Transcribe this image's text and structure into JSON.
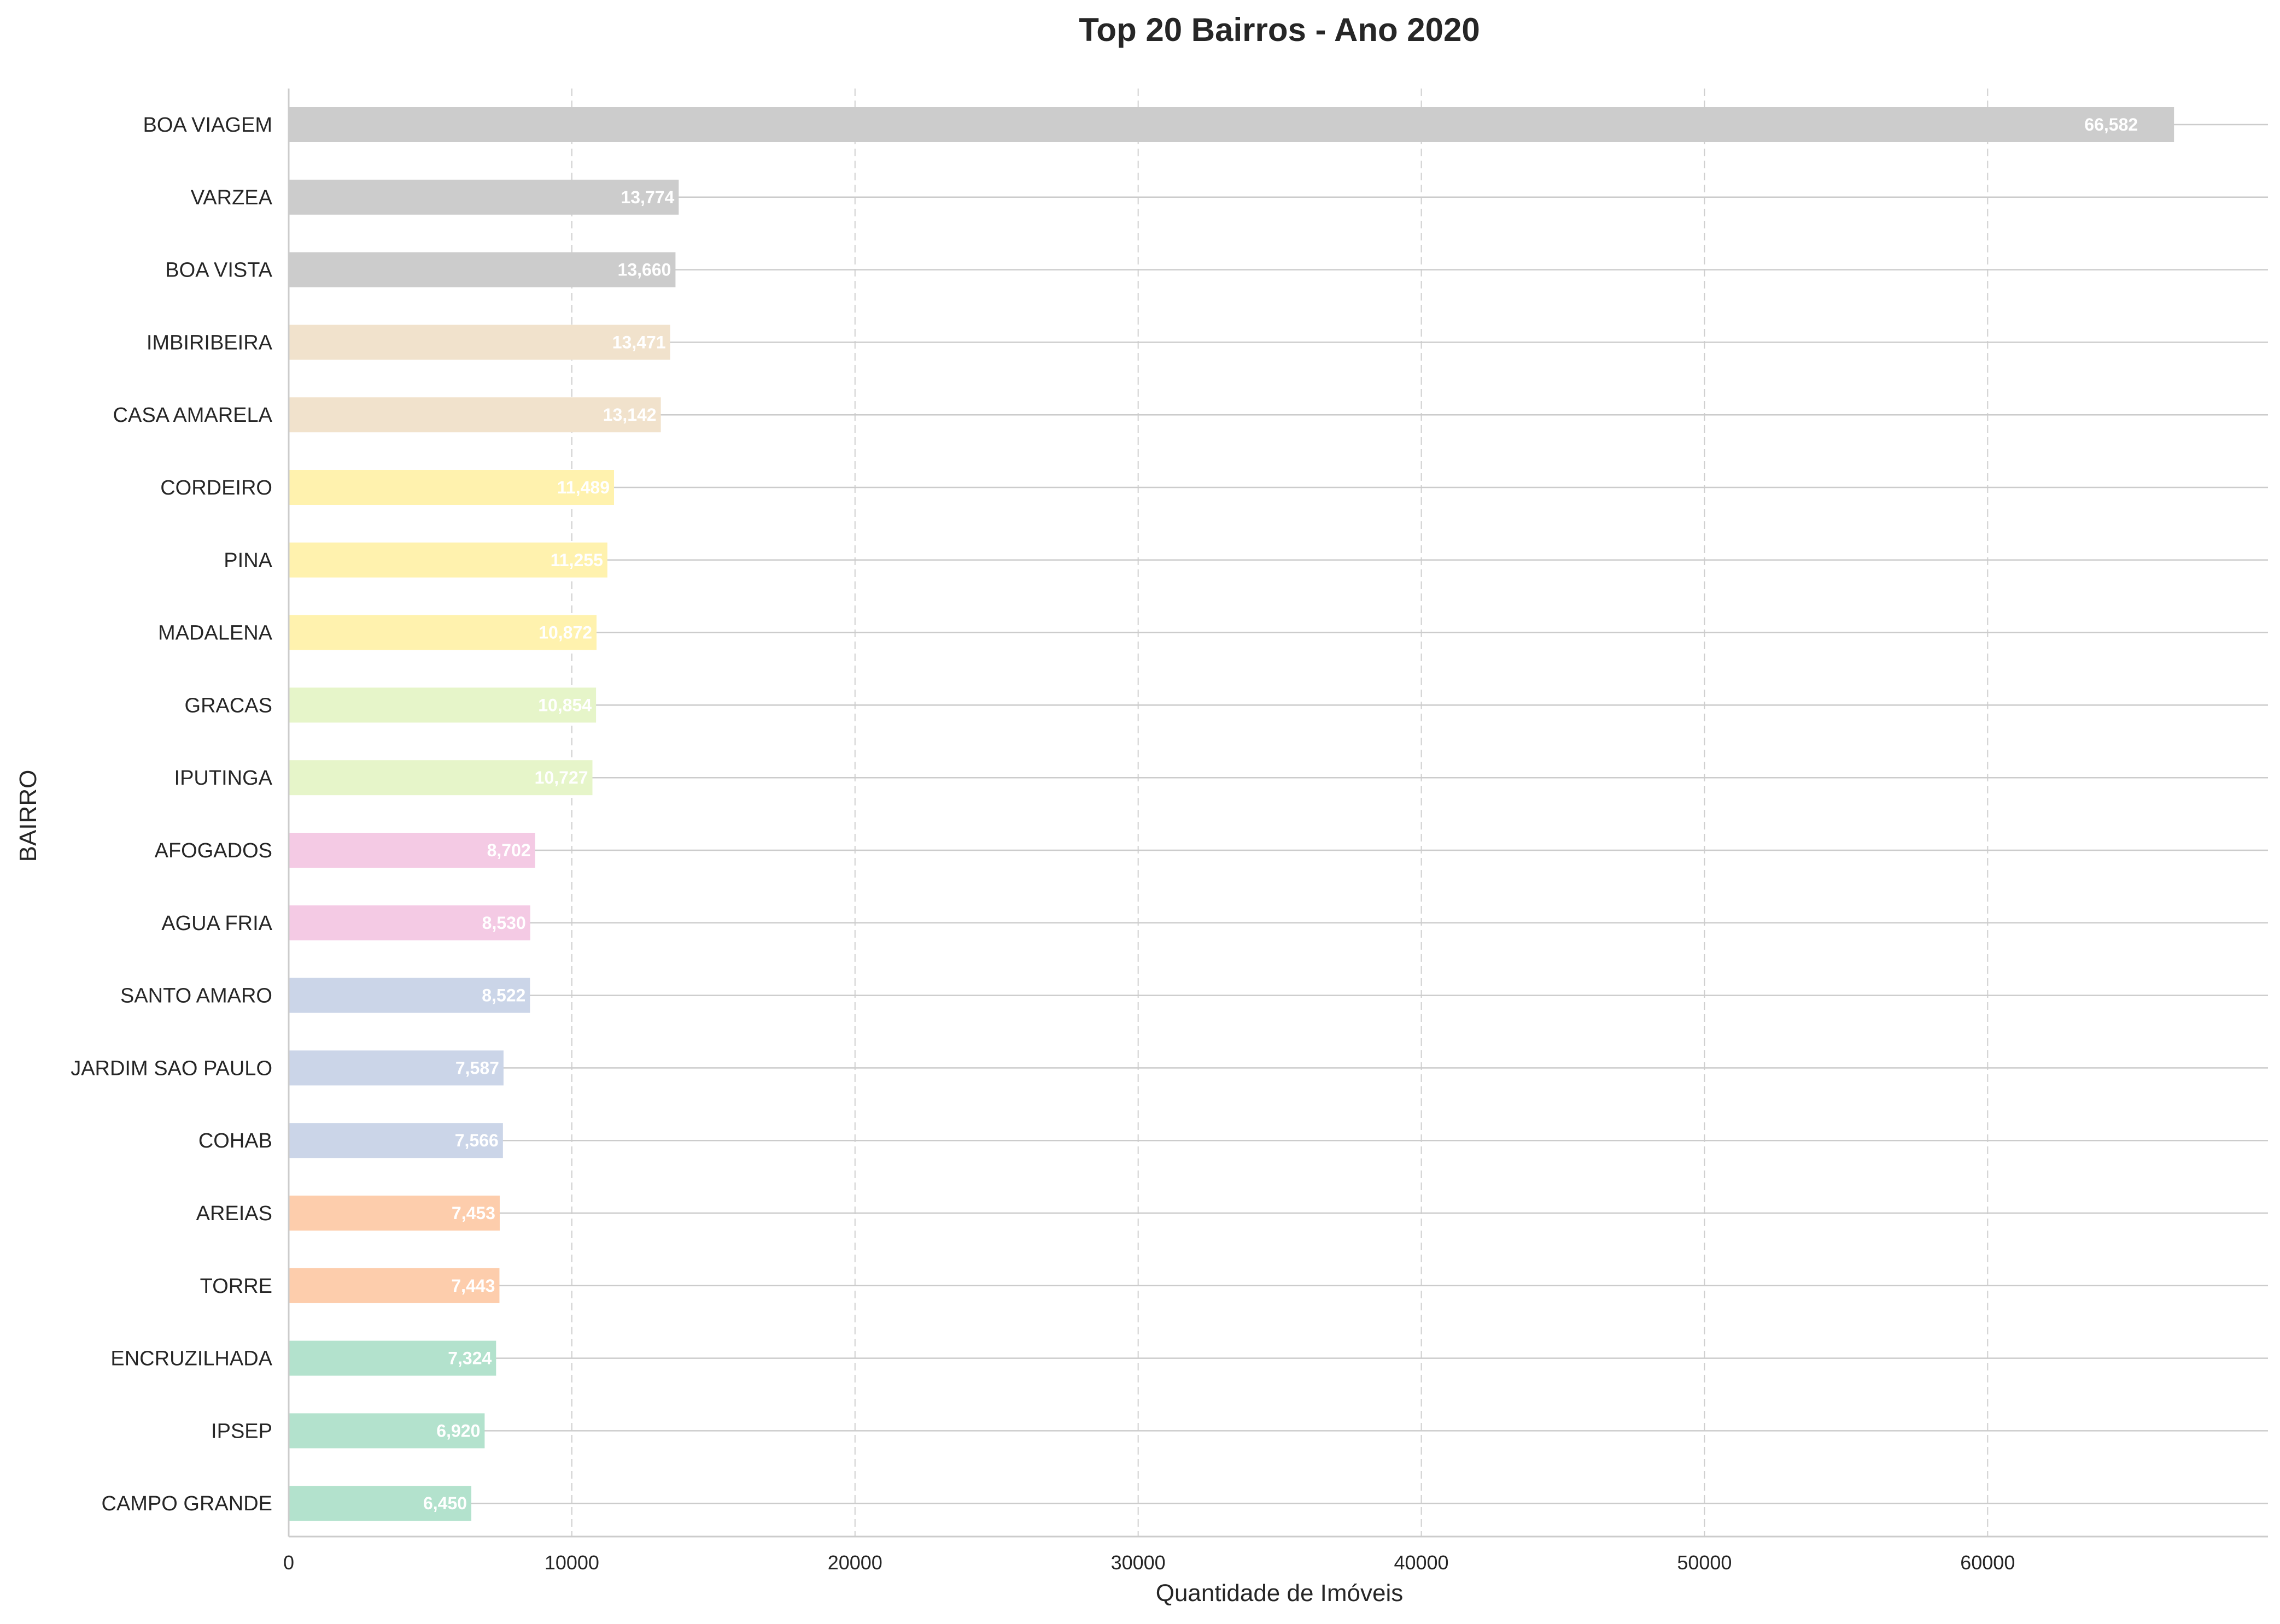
{
  "chart_data": {
    "type": "bar",
    "orientation": "horizontal",
    "title": "Top 20 Bairros - Ano 2020",
    "xlabel": "Quantidade de Imóveis",
    "ylabel": "BAIRRO",
    "xlim": [
      0,
      69900
    ],
    "xticks": [
      0,
      10000,
      20000,
      30000,
      40000,
      50000,
      60000
    ],
    "xtick_labels": [
      "0",
      "10000",
      "20000",
      "30000",
      "40000",
      "50000",
      "60000"
    ],
    "grid": "x dashed, y solid",
    "categories": [
      "BOA VIAGEM",
      "VARZEA",
      "BOA VISTA",
      "IMBIRIBEIRA",
      "CASA AMARELA",
      "CORDEIRO",
      "PINA",
      "MADALENA",
      "GRACAS",
      "IPUTINGA",
      "AFOGADOS",
      "AGUA FRIA",
      "SANTO AMARO",
      "JARDIM SAO PAULO",
      "COHAB",
      "AREIAS",
      "TORRE",
      "ENCRUZILHADA",
      "IPSEP",
      "CAMPO GRANDE"
    ],
    "values": [
      66582,
      13774,
      13660,
      13471,
      13142,
      11489,
      11255,
      10872,
      10854,
      10727,
      8702,
      8530,
      8522,
      7587,
      7566,
      7453,
      7443,
      7324,
      6920,
      6450
    ],
    "value_labels": [
      "66,582",
      "13,774",
      "13,660",
      "13,471",
      "13,142",
      "11,489",
      "11,255",
      "10,872",
      "10,854",
      "10,727",
      "8,702",
      "8,530",
      "8,522",
      "7,587",
      "7,566",
      "7,453",
      "7,443",
      "7,324",
      "6,920",
      "6,450"
    ],
    "colors": [
      "#cccccc",
      "#cccccc",
      "#cccccc",
      "#f1e2cc",
      "#f1e2cc",
      "#fff2ae",
      "#fff2ae",
      "#fff2ae",
      "#e6f5c9",
      "#e6f5c9",
      "#f4cae4",
      "#f4cae4",
      "#cbd5e8",
      "#cbd5e8",
      "#cbd5e8",
      "#fdcdac",
      "#fdcdac",
      "#b3e2cd",
      "#b3e2cd",
      "#b3e2cd"
    ]
  }
}
